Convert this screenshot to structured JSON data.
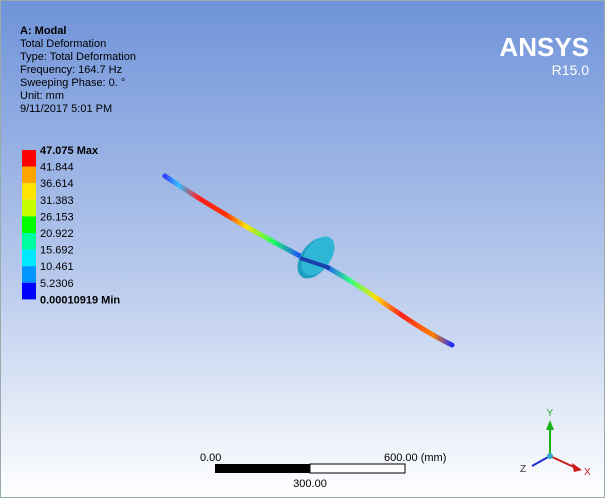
{
  "header": {
    "title": "A: Modal",
    "lines": [
      "Total Deformation",
      "Type: Total Deformation",
      "Frequency: 164.7 Hz",
      "Sweeping Phase: 0. °",
      "Unit: mm",
      "9/11/2017 5:01 PM"
    ]
  },
  "logo": {
    "name": "ANSYS",
    "version": "R15.0"
  },
  "legend": {
    "labels": [
      "47.075 Max",
      "41.844",
      "36.614",
      "31.383",
      "26.153",
      "20.922",
      "15.692",
      "10.461",
      "5.2306",
      "0.00010919 Min"
    ]
  },
  "scale_bar": {
    "start": "0.00",
    "end": "600.00 (mm)",
    "middle": "300.00"
  },
  "triad": {
    "y": "Y",
    "x": "X",
    "z": "Z"
  }
}
